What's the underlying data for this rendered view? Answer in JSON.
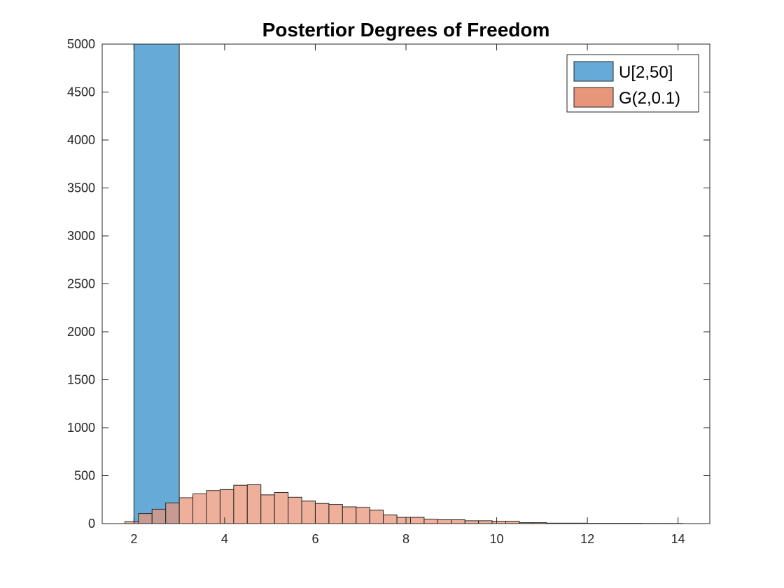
{
  "chart_data": {
    "type": "bar",
    "title": "Postertior Degrees of Freedom",
    "xlabel": "",
    "ylabel": "",
    "xlim": [
      1.3,
      14.7
    ],
    "ylim": [
      0,
      5000
    ],
    "xticks": [
      2,
      4,
      6,
      8,
      10,
      12,
      14
    ],
    "yticks": [
      0,
      500,
      1000,
      1500,
      2000,
      2500,
      3000,
      3500,
      4000,
      4500,
      5000
    ],
    "grid": false,
    "legend_position": "top-right",
    "series": [
      {
        "name": "U[2,50]",
        "color": "#66aad8",
        "bins": [
          {
            "x0": 2.0,
            "x1": 3.0,
            "count": 5000
          }
        ]
      },
      {
        "name": "G(2,0.1)",
        "color": "#e8967a",
        "bin_width": 0.3,
        "bin_start": 1.8,
        "counts": [
          20,
          105,
          150,
          215,
          270,
          310,
          345,
          355,
          400,
          405,
          300,
          325,
          275,
          235,
          210,
          200,
          175,
          170,
          140,
          90,
          65,
          65,
          45,
          40,
          40,
          30,
          30,
          25,
          25,
          10,
          10,
          5,
          5,
          5,
          3,
          3,
          3,
          3,
          2,
          2,
          2
        ]
      }
    ]
  }
}
